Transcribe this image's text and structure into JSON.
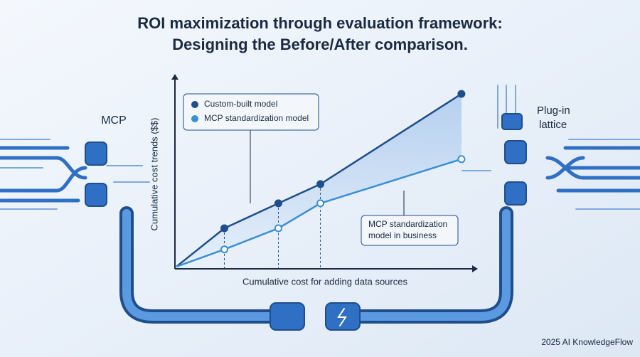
{
  "title": "ROI maximization through evaluation framework:",
  "subtitle": "Designing the Before/After comparison.",
  "labels": {
    "left": "MCP",
    "right": [
      "Plug-in",
      "lattice"
    ],
    "footer": "2025 AI KnowledgeFlow"
  },
  "chart_data": {
    "type": "line",
    "x_label": "Cumulative cost for adding data sources",
    "y_label": "Cumulative cost trends ($$)",
    "x": [
      0,
      1.6,
      3.4,
      4.8,
      9.5
    ],
    "series": [
      {
        "name": "Custom-built model",
        "color": "#1f4e8c",
        "values": [
          0,
          2.0,
          3.3,
          4.3,
          9.0
        ]
      },
      {
        "name": "MCP standardization model",
        "color": "#3a8fd6",
        "values": [
          0,
          0.9,
          2.0,
          3.3,
          5.6
        ]
      }
    ],
    "annotation": [
      "MCP standardization",
      "model in business"
    ],
    "xlim": [
      0,
      10
    ],
    "ylim": [
      0,
      10
    ]
  }
}
